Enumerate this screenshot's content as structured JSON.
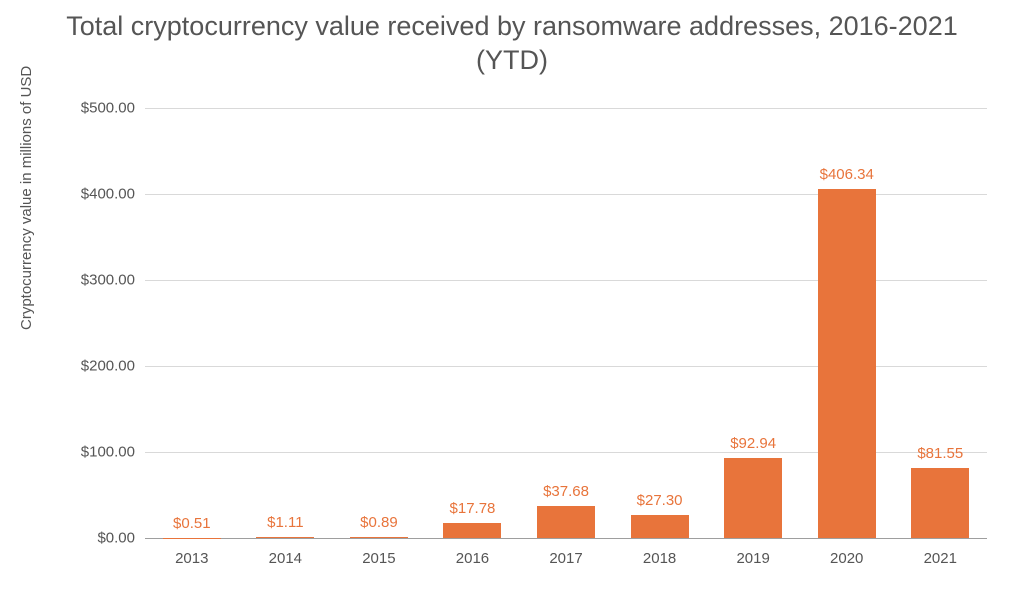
{
  "chart": {
    "type": "bar",
    "title": "Total cryptocurrency value received by ransomware addresses, 2016-2021 (YTD)",
    "title_fontsize": 27,
    "title_color": "#555555",
    "ylabel": "Cryptocurrency value in millions of USD",
    "ylabel_fontsize": 15,
    "ylabel_color": "#555555",
    "categories": [
      "2013",
      "2014",
      "2015",
      "2016",
      "2017",
      "2018",
      "2019",
      "2020",
      "2021"
    ],
    "values": [
      0.51,
      1.11,
      0.89,
      17.78,
      37.68,
      27.3,
      92.94,
      406.34,
      81.55
    ],
    "value_labels": [
      "$0.51",
      "$1.11",
      "$0.89",
      "$17.78",
      "$37.68",
      "$27.30",
      "$92.94",
      "$406.34",
      "$81.55"
    ],
    "bar_color": "#e8743b",
    "value_label_color": "#e8743b",
    "value_label_fontsize": 15,
    "axis_label_color": "#555555",
    "axis_label_fontsize": 15,
    "background_color": "#ffffff",
    "grid_color": "#d9d9d9",
    "baseline_color": "#9e9e9e",
    "ylim": [
      0,
      500
    ],
    "ytick_step": 100,
    "ytick_labels": [
      "$0.00",
      "$100.00",
      "$200.00",
      "$300.00",
      "$400.00",
      "$500.00"
    ],
    "bar_width": 0.62
  }
}
